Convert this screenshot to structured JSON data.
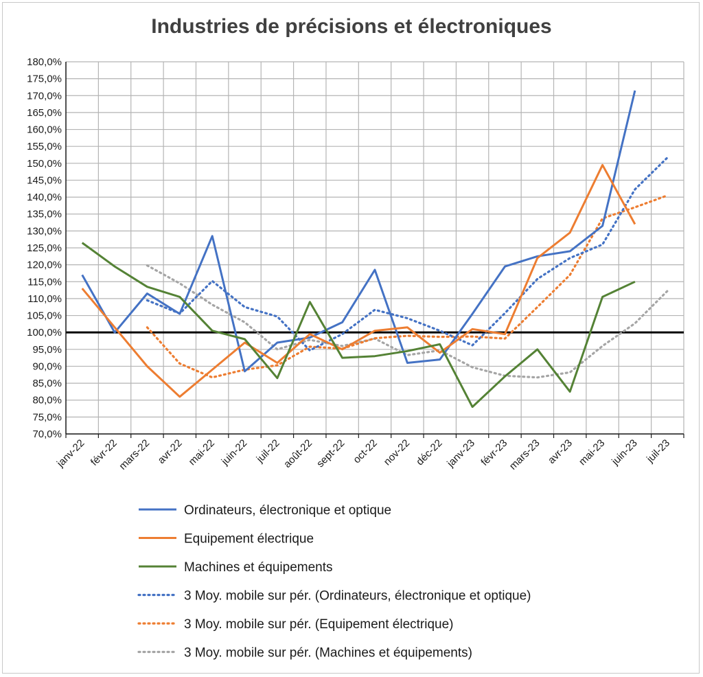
{
  "chart_data": {
    "type": "line",
    "title": "Industries de précisions et électroniques",
    "xlabel": "",
    "ylabel": "",
    "ylim": [
      70,
      180
    ],
    "y_ticks": [
      "70,0%",
      "75,0%",
      "80,0%",
      "85,0%",
      "90,0%",
      "95,0%",
      "100,0%",
      "105,0%",
      "110,0%",
      "115,0%",
      "120,0%",
      "125,0%",
      "130,0%",
      "135,0%",
      "140,0%",
      "145,0%",
      "150,0%",
      "155,0%",
      "160,0%",
      "165,0%",
      "170,0%",
      "175,0%",
      "180,0%"
    ],
    "categories": [
      "janv-22",
      "févr-22",
      "mars-22",
      "avr-22",
      "mai-22",
      "juin-22",
      "juil-22",
      "août-22",
      "sept-22",
      "oct-22",
      "nov-22",
      "déc-22",
      "janv-23",
      "févr-23",
      "mars-23",
      "avr-23",
      "mai-23",
      "juin-23",
      "juil-23"
    ],
    "grid": true,
    "reference_line": 100,
    "legend_position": "bottom",
    "series": [
      {
        "name": "Ordinateurs, électronique et optique",
        "color": "#4472c4",
        "style": "solid",
        "values": [
          117,
          100,
          111.5,
          105.5,
          128.5,
          88.5,
          97,
          98.5,
          103,
          118.5,
          91,
          92,
          105.5,
          119.5,
          122.5,
          124,
          131.5,
          171.5,
          null
        ]
      },
      {
        "name": "Equipement électrique",
        "color": "#ed7d31",
        "style": "solid",
        "values": [
          113,
          101.5,
          90,
          81,
          89,
          97,
          91,
          99.5,
          95,
          100.5,
          101.5,
          94,
          101,
          99.5,
          122,
          129.5,
          149.5,
          132,
          null
        ]
      },
      {
        "name": "Machines et équipements",
        "color": "#548235",
        "style": "solid",
        "values": [
          126.5,
          119.5,
          113.5,
          110.5,
          100.5,
          98,
          86.5,
          109,
          92.5,
          93,
          94.5,
          96.5,
          78,
          87,
          95,
          82.5,
          110.5,
          115,
          null
        ]
      },
      {
        "name": "3 Moy. mobile sur pér. (Ordinateurs, électronique et optique)",
        "color": "#4472c4",
        "style": "dotted",
        "values": [
          null,
          null,
          109.5,
          105.6,
          115.2,
          107.5,
          104.7,
          94.7,
          99.5,
          106.7,
          104.2,
          100.5,
          96.2,
          105.7,
          115.8,
          122,
          126,
          142.3,
          151.7
        ]
      },
      {
        "name": "3 Moy. mobile sur pér. (Equipement électrique)",
        "color": "#ed7d31",
        "style": "dotted",
        "values": [
          null,
          null,
          101.5,
          90.8,
          86.7,
          89,
          90.3,
          95.8,
          95.2,
          98.3,
          99,
          98.7,
          98.8,
          98.2,
          107.5,
          117,
          133.7,
          137,
          140.5
        ]
      },
      {
        "name": "3 Moy. mobile sur pér. (Machines et équipements)",
        "color": "#a5a5a5",
        "style": "dotted",
        "values": [
          null,
          null,
          119.8,
          114.5,
          108.2,
          103,
          95,
          97.8,
          96,
          98.2,
          93.3,
          94.7,
          89.7,
          87.2,
          86.7,
          88.2,
          96,
          102.7,
          112.3
        ]
      }
    ]
  }
}
